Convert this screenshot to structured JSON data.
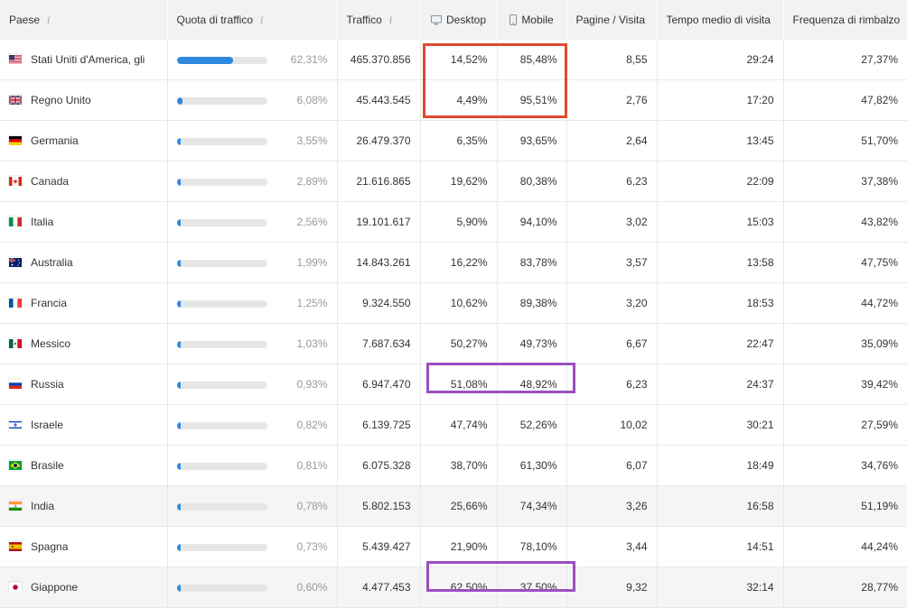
{
  "headers": {
    "country": "Paese",
    "share": "Quota di traffico",
    "traffic": "Traffico",
    "desktop": "Desktop",
    "mobile": "Mobile",
    "pages": "Pagine / Visita",
    "time": "Tempo medio di visita",
    "bounce": "Frequenza di rimbalzo",
    "info_glyph": "i"
  },
  "colors": {
    "bar": "#2f8ade",
    "red_box": "#e04a2f",
    "purple_box": "#9b4fbf"
  },
  "rows": [
    {
      "country": "Stati Uniti d'America, gli",
      "flag": "us",
      "bar": 0.6231,
      "share": "62,31%",
      "traffic": "465.370.856",
      "desktop": "14,52%",
      "mobile": "85,48%",
      "pages": "8,55",
      "time": "29:24",
      "bounce": "27,37%"
    },
    {
      "country": "Regno Unito",
      "flag": "gb",
      "bar": 0.0608,
      "share": "6,08%",
      "traffic": "45.443.545",
      "desktop": "4,49%",
      "mobile": "95,51%",
      "pages": "2,76",
      "time": "17:20",
      "bounce": "47,82%"
    },
    {
      "country": "Germania",
      "flag": "de",
      "bar": 0.0355,
      "share": "3,55%",
      "traffic": "26.479.370",
      "desktop": "6,35%",
      "mobile": "93,65%",
      "pages": "2,64",
      "time": "13:45",
      "bounce": "51,70%"
    },
    {
      "country": "Canada",
      "flag": "ca",
      "bar": 0.0289,
      "share": "2,89%",
      "traffic": "21.616.865",
      "desktop": "19,62%",
      "mobile": "80,38%",
      "pages": "6,23",
      "time": "22:09",
      "bounce": "37,38%"
    },
    {
      "country": "Italia",
      "flag": "it",
      "bar": 0.0256,
      "share": "2,56%",
      "traffic": "19.101.617",
      "desktop": "5,90%",
      "mobile": "94,10%",
      "pages": "3,02",
      "time": "15:03",
      "bounce": "43,82%"
    },
    {
      "country": "Australia",
      "flag": "au",
      "bar": 0.0199,
      "share": "1,99%",
      "traffic": "14.843.261",
      "desktop": "16,22%",
      "mobile": "83,78%",
      "pages": "3,57",
      "time": "13:58",
      "bounce": "47,75%"
    },
    {
      "country": "Francia",
      "flag": "fr",
      "bar": 0.0125,
      "share": "1,25%",
      "traffic": "9.324.550",
      "desktop": "10,62%",
      "mobile": "89,38%",
      "pages": "3,20",
      "time": "18:53",
      "bounce": "44,72%"
    },
    {
      "country": "Messico",
      "flag": "mx",
      "bar": 0.0103,
      "share": "1,03%",
      "traffic": "7.687.634",
      "desktop": "50,27%",
      "mobile": "49,73%",
      "pages": "6,67",
      "time": "22:47",
      "bounce": "35,09%"
    },
    {
      "country": "Russia",
      "flag": "ru",
      "bar": 0.0093,
      "share": "0,93%",
      "traffic": "6.947.470",
      "desktop": "51,08%",
      "mobile": "48,92%",
      "pages": "6,23",
      "time": "24:37",
      "bounce": "39,42%"
    },
    {
      "country": "Israele",
      "flag": "il",
      "bar": 0.0082,
      "share": "0,82%",
      "traffic": "6.139.725",
      "desktop": "47,74%",
      "mobile": "52,26%",
      "pages": "10,02",
      "time": "30:21",
      "bounce": "27,59%"
    },
    {
      "country": "Brasile",
      "flag": "br",
      "bar": 0.0081,
      "share": "0,81%",
      "traffic": "6.075.328",
      "desktop": "38,70%",
      "mobile": "61,30%",
      "pages": "6,07",
      "time": "18:49",
      "bounce": "34,76%"
    },
    {
      "country": "India",
      "flag": "in",
      "bar": 0.0078,
      "share": "0,78%",
      "traffic": "5.802.153",
      "desktop": "25,66%",
      "mobile": "74,34%",
      "pages": "3,26",
      "time": "16:58",
      "bounce": "51,19%",
      "highlight": true
    },
    {
      "country": "Spagna",
      "flag": "es",
      "bar": 0.0073,
      "share": "0,73%",
      "traffic": "5.439.427",
      "desktop": "21,90%",
      "mobile": "78,10%",
      "pages": "3,44",
      "time": "14:51",
      "bounce": "44,24%"
    },
    {
      "country": "Giappone",
      "flag": "jp",
      "bar": 0.006,
      "share": "0,60%",
      "traffic": "4.477.453",
      "desktop": "62,50%",
      "mobile": "37,50%",
      "pages": "9,32",
      "time": "32:14",
      "bounce": "28,77%",
      "highlight": true
    }
  ]
}
